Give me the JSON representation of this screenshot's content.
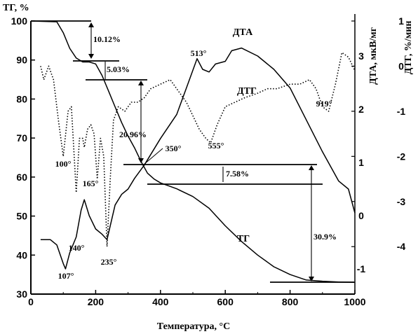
{
  "chart_data": {
    "type": "line",
    "xlabel": "Температура, °С",
    "ylabel": "ТГ, %",
    "y2label": "ДТА, мкВ/мг",
    "y3label": "ДТГ, %/мин",
    "xlim": [
      0,
      1000
    ],
    "ylim": [
      30,
      100
    ],
    "y2lim": [
      -1.5,
      3.5
    ],
    "y3lim": [
      -4.4,
      1.0
    ],
    "x_ticks": [
      "0",
      "200",
      "400",
      "600",
      "800",
      "1000"
    ],
    "y_ticks": [
      "30",
      "40",
      "50",
      "60",
      "70",
      "80",
      "90",
      "100"
    ],
    "y2_ticks": [
      "-1",
      "0",
      "1",
      "2",
      "3"
    ],
    "y3_ticks": [
      "-4",
      "-3",
      "-2",
      "-1",
      "0",
      "1"
    ],
    "grid": false,
    "series": [
      {
        "name": "ТГ",
        "axis": "y",
        "style": "solid",
        "points": [
          [
            0,
            100
          ],
          [
            80,
            99.8
          ],
          [
            100,
            97
          ],
          [
            120,
            93
          ],
          [
            140,
            90.5
          ],
          [
            160,
            89.5
          ],
          [
            180,
            89.5
          ],
          [
            200,
            89
          ],
          [
            220,
            86
          ],
          [
            240,
            82
          ],
          [
            260,
            78
          ],
          [
            280,
            74
          ],
          [
            300,
            70.5
          ],
          [
            320,
            67.5
          ],
          [
            340,
            64
          ],
          [
            360,
            61
          ],
          [
            380,
            59.5
          ],
          [
            400,
            58.5
          ],
          [
            450,
            57
          ],
          [
            500,
            55
          ],
          [
            550,
            52
          ],
          [
            600,
            47.5
          ],
          [
            650,
            43.5
          ],
          [
            700,
            40
          ],
          [
            750,
            37
          ],
          [
            800,
            35
          ],
          [
            850,
            33.6
          ],
          [
            900,
            33.3
          ],
          [
            950,
            33.1
          ],
          [
            1000,
            33
          ]
        ]
      },
      {
        "name": "ДТА",
        "axis": "y2",
        "style": "solid",
        "points": [
          [
            30,
            -0.45
          ],
          [
            60,
            -0.45
          ],
          [
            80,
            -0.55
          ],
          [
            100,
            -0.9
          ],
          [
            107,
            -1.0
          ],
          [
            120,
            -0.7
          ],
          [
            140,
            -0.4
          ],
          [
            155,
            0.1
          ],
          [
            165,
            0.3
          ],
          [
            180,
            0.0
          ],
          [
            200,
            -0.25
          ],
          [
            220,
            -0.35
          ],
          [
            235,
            -0.45
          ],
          [
            260,
            0.2
          ],
          [
            280,
            0.4
          ],
          [
            300,
            0.5
          ],
          [
            320,
            0.7
          ],
          [
            350,
            0.95
          ],
          [
            400,
            1.45
          ],
          [
            450,
            1.9
          ],
          [
            480,
            2.4
          ],
          [
            513,
            2.95
          ],
          [
            530,
            2.75
          ],
          [
            550,
            2.7
          ],
          [
            570,
            2.85
          ],
          [
            600,
            2.9
          ],
          [
            620,
            3.1
          ],
          [
            650,
            3.15
          ],
          [
            700,
            3.0
          ],
          [
            750,
            2.75
          ],
          [
            800,
            2.4
          ],
          [
            850,
            1.8
          ],
          [
            900,
            1.2
          ],
          [
            950,
            0.65
          ],
          [
            980,
            0.5
          ],
          [
            1000,
            0.05
          ]
        ]
      },
      {
        "name": "ДТГ",
        "axis": "y3",
        "style": "dotted",
        "points": [
          [
            30,
            0.0
          ],
          [
            40,
            -0.3
          ],
          [
            55,
            0.0
          ],
          [
            70,
            -0.3
          ],
          [
            85,
            -1.2
          ],
          [
            100,
            -2.0
          ],
          [
            115,
            -1.0
          ],
          [
            125,
            -0.9
          ],
          [
            140,
            -2.8
          ],
          [
            150,
            -1.6
          ],
          [
            160,
            -1.6
          ],
          [
            165,
            -1.8
          ],
          [
            175,
            -1.4
          ],
          [
            185,
            -1.3
          ],
          [
            195,
            -1.5
          ],
          [
            205,
            -2.5
          ],
          [
            215,
            -1.6
          ],
          [
            225,
            -2.0
          ],
          [
            235,
            -4.0
          ],
          [
            245,
            -2.5
          ],
          [
            255,
            -1.2
          ],
          [
            270,
            -0.9
          ],
          [
            290,
            -1.0
          ],
          [
            310,
            -0.8
          ],
          [
            330,
            -0.8
          ],
          [
            350,
            -0.7
          ],
          [
            370,
            -0.5
          ],
          [
            400,
            -0.4
          ],
          [
            430,
            -0.3
          ],
          [
            450,
            -0.5
          ],
          [
            480,
            -0.8
          ],
          [
            500,
            -1.1
          ],
          [
            520,
            -1.4
          ],
          [
            540,
            -1.6
          ],
          [
            555,
            -1.7
          ],
          [
            575,
            -1.3
          ],
          [
            600,
            -0.9
          ],
          [
            630,
            -0.8
          ],
          [
            660,
            -0.7
          ],
          [
            700,
            -0.6
          ],
          [
            730,
            -0.5
          ],
          [
            760,
            -0.5
          ],
          [
            800,
            -0.4
          ],
          [
            830,
            -0.4
          ],
          [
            860,
            -0.3
          ],
          [
            880,
            -0.5
          ],
          [
            900,
            -0.9
          ],
          [
            919,
            -1.0
          ],
          [
            940,
            -0.4
          ],
          [
            960,
            0.3
          ],
          [
            980,
            0.2
          ],
          [
            1000,
            -0.1
          ]
        ]
      }
    ],
    "annotations": [
      "10.12%",
      "5.03%",
      "20.96%",
      "7.58%",
      "30.9%"
    ],
    "peak_labels": [
      "100°",
      "107°",
      "140°",
      "165°",
      "235°",
      "350°",
      "513°",
      "555°",
      "919°"
    ],
    "series_labels": [
      "ДТА",
      "ДТГ",
      "ТГ"
    ]
  }
}
